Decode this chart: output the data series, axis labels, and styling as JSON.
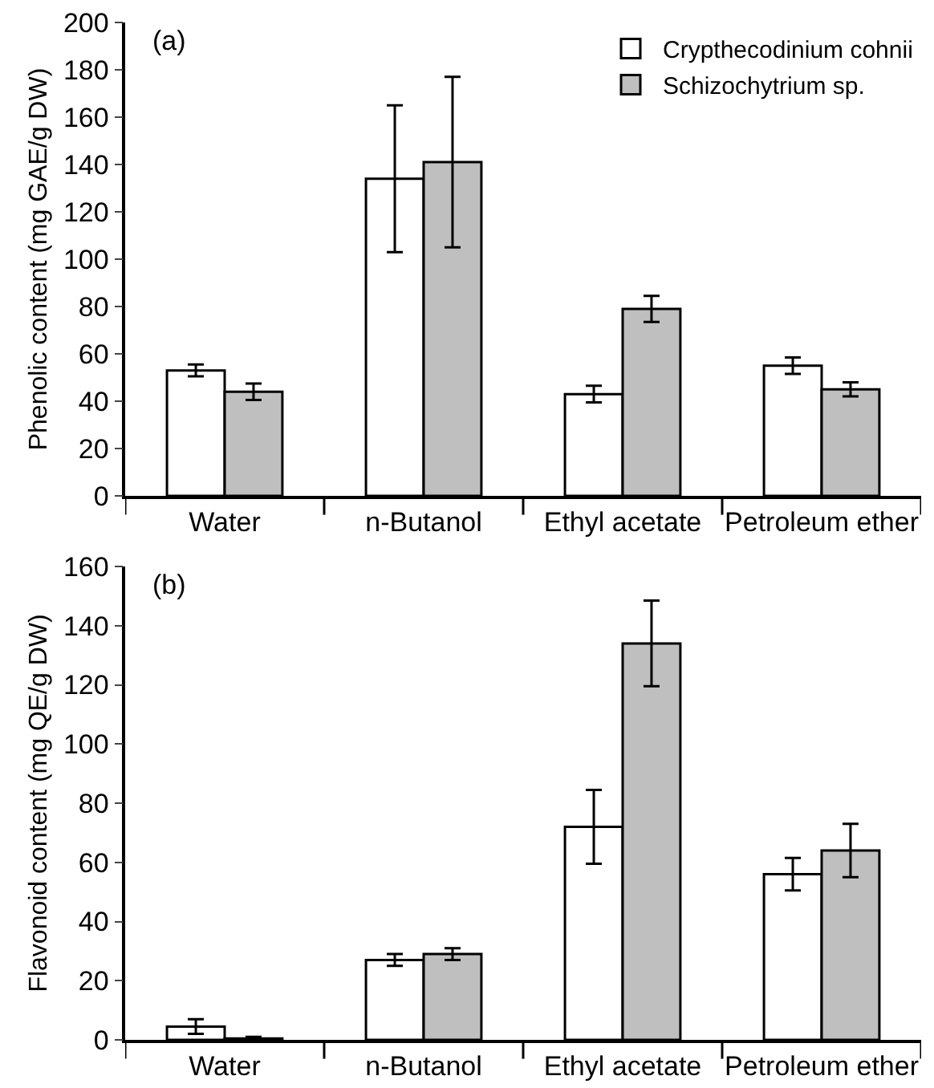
{
  "chart_data": [
    {
      "type": "bar",
      "ylabel": "Phenolic content (mg GAE/g DW)",
      "annotations": [
        "(a)"
      ],
      "categories": [
        "Water",
        "n-Butanol",
        "Ethyl acetate",
        "Petroleum ether"
      ],
      "series": [
        {
          "name": "Crypthecodinium cohnii",
          "color": "#ffffff",
          "values": [
            53,
            134,
            43,
            55
          ],
          "errors": [
            2.5,
            31,
            3.5,
            3.5
          ]
        },
        {
          "name": "Schizochytrium sp.",
          "color": "#bfbfbf",
          "values": [
            44,
            141,
            79,
            45
          ],
          "errors": [
            3.5,
            36,
            5.5,
            3
          ]
        }
      ],
      "ylim": [
        0,
        200
      ],
      "yticks": [
        0,
        20,
        40,
        60,
        80,
        100,
        120,
        140,
        160,
        180,
        200
      ],
      "grid": false,
      "legend": "top right"
    },
    {
      "type": "bar",
      "ylabel": "Flavonoid content (mg QE/g DW)",
      "annotations": [
        "(b)"
      ],
      "categories": [
        "Water",
        "n-Butanol",
        "Ethyl acetate",
        "Petroleum ether"
      ],
      "series": [
        {
          "color": "#ffffff",
          "values": [
            4.5,
            27,
            72,
            56
          ],
          "errors": [
            2.5,
            2,
            12.5,
            5.5
          ]
        },
        {
          "color": "#bfbfbf",
          "values": [
            0.5,
            29,
            134,
            64
          ],
          "errors": [
            0.5,
            2,
            14.5,
            9
          ]
        }
      ],
      "ylim": [
        0,
        160
      ],
      "yticks": [
        0,
        20,
        40,
        60,
        80,
        100,
        120,
        140,
        160
      ],
      "grid": false,
      "legend": false
    }
  ]
}
